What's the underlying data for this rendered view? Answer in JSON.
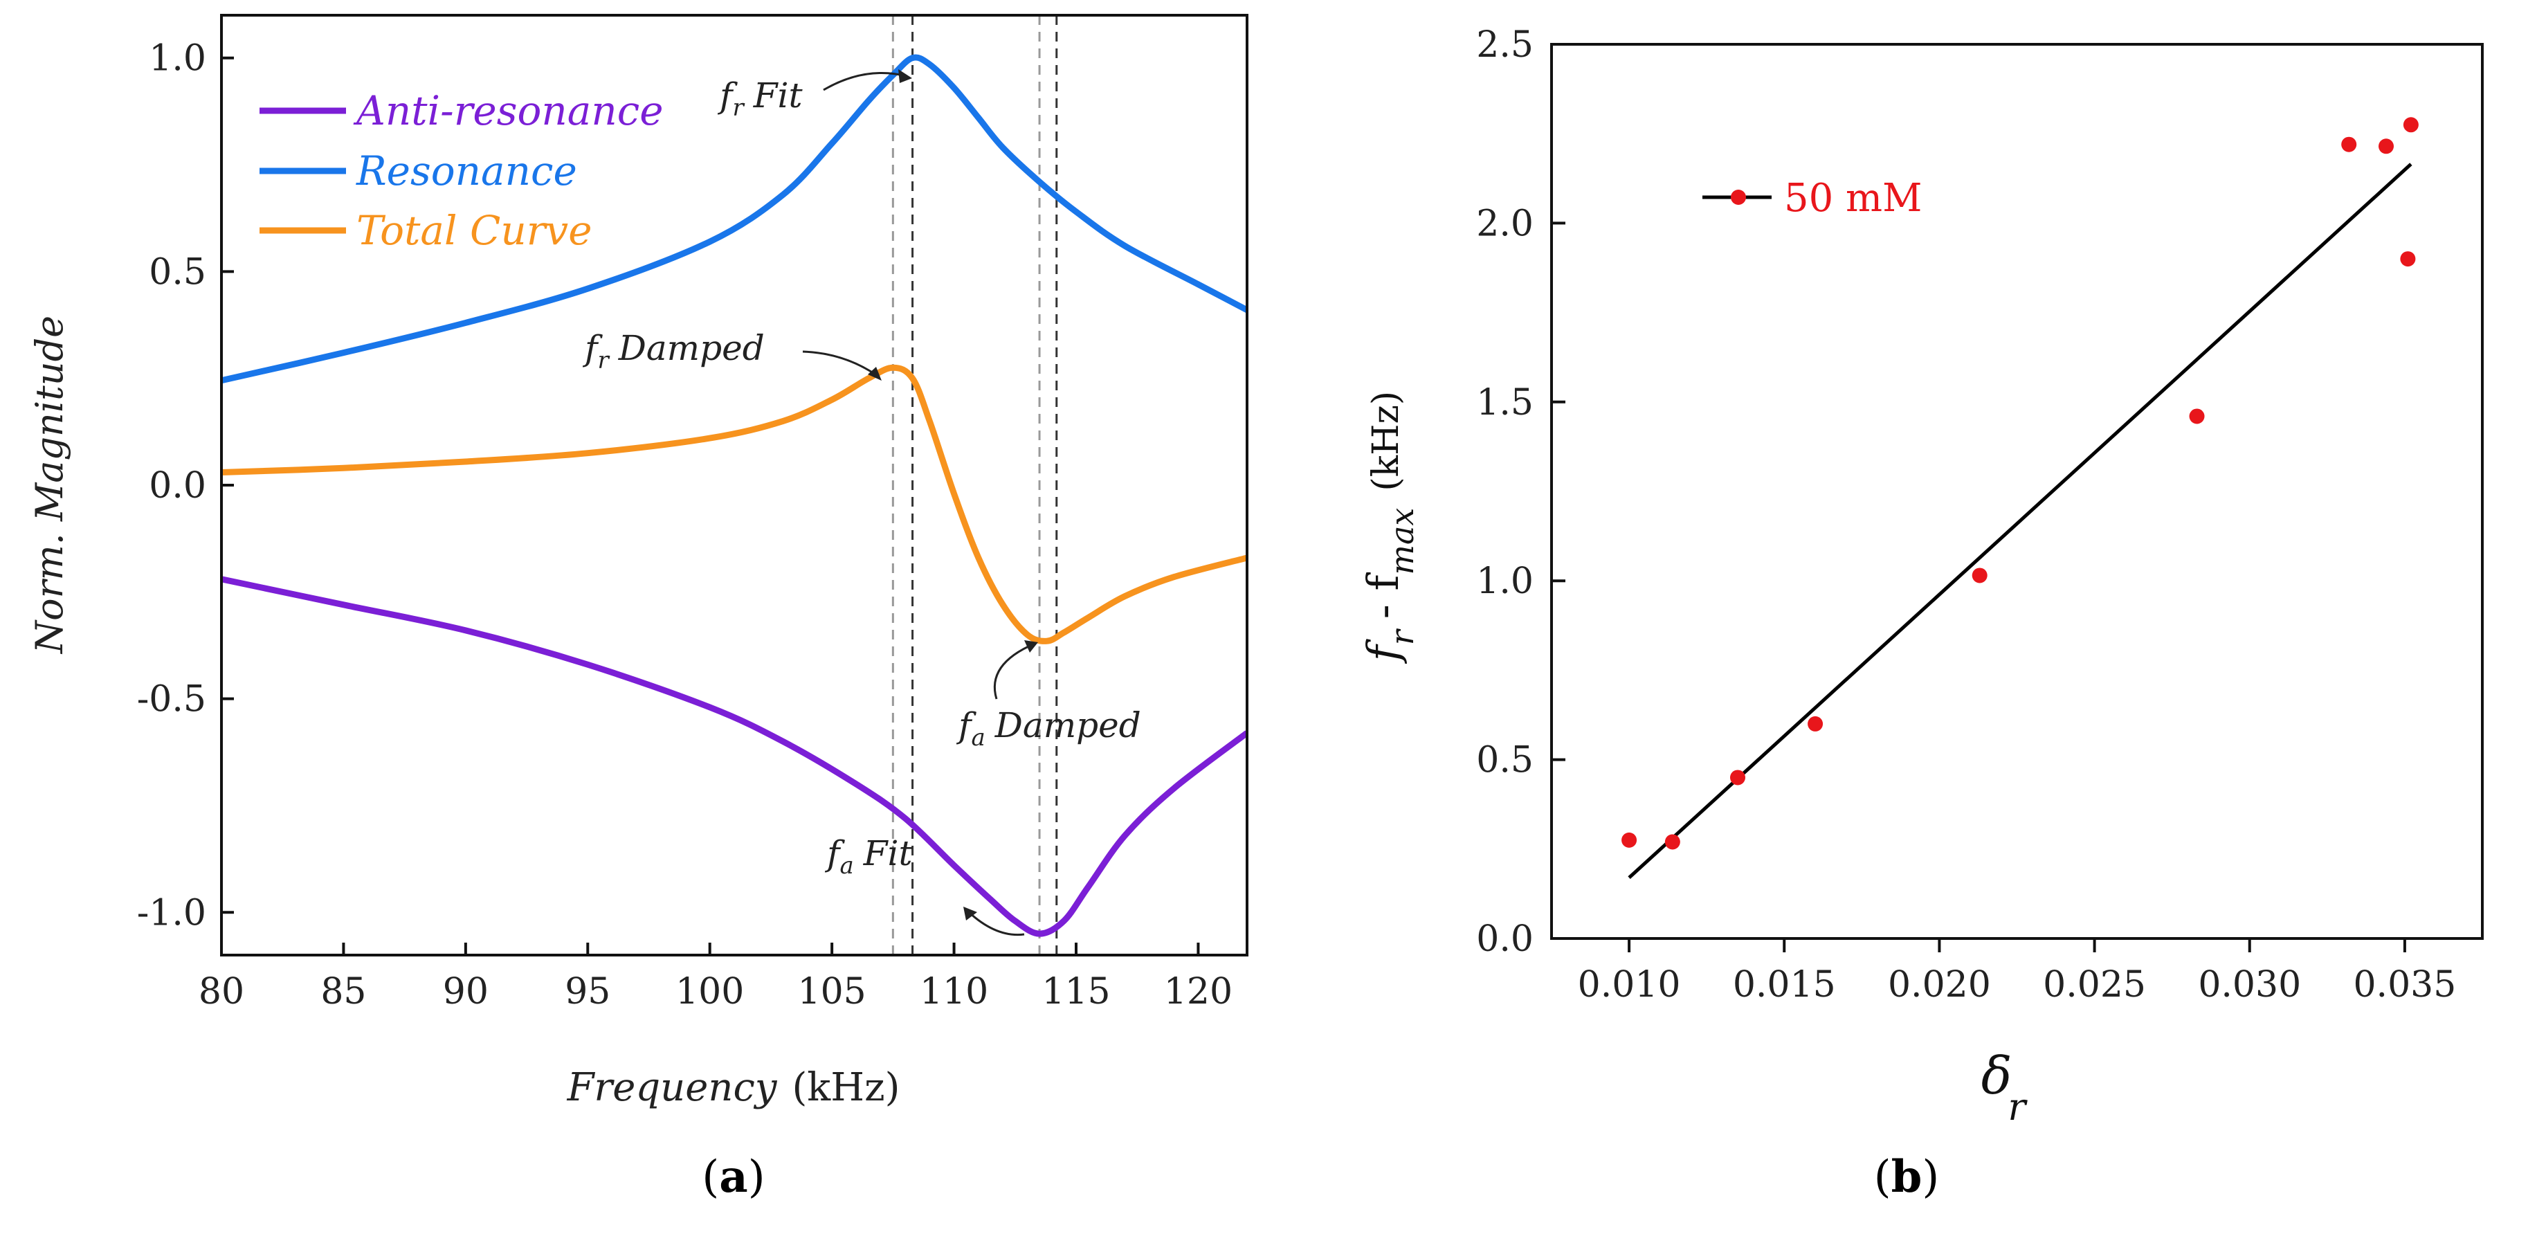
{
  "chart_data": [
    {
      "type": "line",
      "panel_label": "(a)",
      "panel_label_letter": "a",
      "xlabel": "Frequency",
      "xlabel_unit": "(kHz)",
      "ylabel": "Norm. Magnitude",
      "xlim": [
        80,
        122
      ],
      "ylim": [
        -1.1,
        1.1
      ],
      "x_ticks": [
        "80",
        "85",
        "90",
        "95",
        "100",
        "105",
        "110",
        "115",
        "120"
      ],
      "y_ticks": [
        "-1.0",
        "-0.5",
        "0.0",
        "0.5",
        "1.0"
      ],
      "legend_position": "top-left",
      "series": [
        {
          "name": "Anti-resonance",
          "color": "#7b1fd6",
          "x": [
            80,
            85,
            90,
            95,
            100,
            103,
            106,
            108,
            110,
            111.5,
            112.5,
            113.5,
            114.5,
            115.5,
            117,
            119,
            122
          ],
          "y": [
            -0.22,
            -0.28,
            -0.34,
            -0.42,
            -0.52,
            -0.6,
            -0.7,
            -0.78,
            -0.89,
            -0.97,
            -1.02,
            -1.05,
            -1.02,
            -0.94,
            -0.82,
            -0.71,
            -0.58
          ]
        },
        {
          "name": "Resonance",
          "color": "#1976ea",
          "x": [
            80,
            85,
            90,
            95,
            100,
            103,
            105,
            106.5,
            107.5,
            108.3,
            109,
            110,
            111,
            112,
            113.5,
            115,
            117,
            120,
            122
          ],
          "y": [
            0.245,
            0.31,
            0.38,
            0.46,
            0.57,
            0.68,
            0.8,
            0.9,
            0.96,
            1.0,
            0.985,
            0.93,
            0.86,
            0.79,
            0.71,
            0.64,
            0.56,
            0.47,
            0.41
          ]
        },
        {
          "name": "Total Curve",
          "color": "#f7931e",
          "x": [
            80,
            85,
            90,
            95,
            100,
            103,
            105,
            106.5,
            107.5,
            108.3,
            109,
            110,
            111,
            112,
            113,
            113.8,
            114.5,
            115.5,
            117,
            119,
            122
          ],
          "y": [
            0.03,
            0.04,
            0.055,
            0.075,
            0.11,
            0.15,
            0.2,
            0.25,
            0.275,
            0.25,
            0.15,
            -0.02,
            -0.17,
            -0.28,
            -0.35,
            -0.365,
            -0.345,
            -0.31,
            -0.26,
            -0.215,
            -0.17
          ]
        }
      ],
      "vertical_lines": [
        107.5,
        108.3,
        113.5,
        114.2
      ],
      "annotations": [
        {
          "text": "Fit",
          "subscript": "r",
          "prefix": "f"
        },
        {
          "text": "Damped",
          "subscript": "r",
          "prefix": "f"
        },
        {
          "text": "Damped",
          "subscript": "a",
          "prefix": "f"
        },
        {
          "text": "Fit",
          "subscript": "a",
          "prefix": "f"
        }
      ]
    },
    {
      "type": "scatter",
      "panel_label": "(b)",
      "panel_label_letter": "b",
      "xlabel": "δ",
      "xlabel_sub": "r",
      "ylabel_f": "f",
      "ylabel_sub_r": "r",
      "ylabel_dash": "- f",
      "ylabel_sub_max": "max",
      "ylabel_unit": "(kHz)",
      "xlim": [
        0.0075,
        0.0375
      ],
      "ylim": [
        0,
        2.5
      ],
      "x_ticks": [
        "0.010",
        "0.015",
        "0.020",
        "0.025",
        "0.030",
        "0.035"
      ],
      "y_ticks": [
        "0.0",
        "0.5",
        "1.0",
        "1.5",
        "2.0",
        "2.5"
      ],
      "legend_position": "top-left",
      "legend_label": "50 mM",
      "point_color": "#e8161b",
      "line_color": "#000000",
      "points": [
        {
          "x": 0.01,
          "y": 0.275
        },
        {
          "x": 0.0114,
          "y": 0.27
        },
        {
          "x": 0.0135,
          "y": 0.45
        },
        {
          "x": 0.016,
          "y": 0.6
        },
        {
          "x": 0.0213,
          "y": 1.015
        },
        {
          "x": 0.0283,
          "y": 1.46
        },
        {
          "x": 0.0332,
          "y": 2.22
        },
        {
          "x": 0.0344,
          "y": 2.215
        },
        {
          "x": 0.0351,
          "y": 1.9
        },
        {
          "x": 0.0352,
          "y": 2.275
        }
      ],
      "fit_line": {
        "x": [
          0.01,
          0.0352
        ],
        "y": [
          0.17,
          2.165
        ]
      }
    }
  ]
}
